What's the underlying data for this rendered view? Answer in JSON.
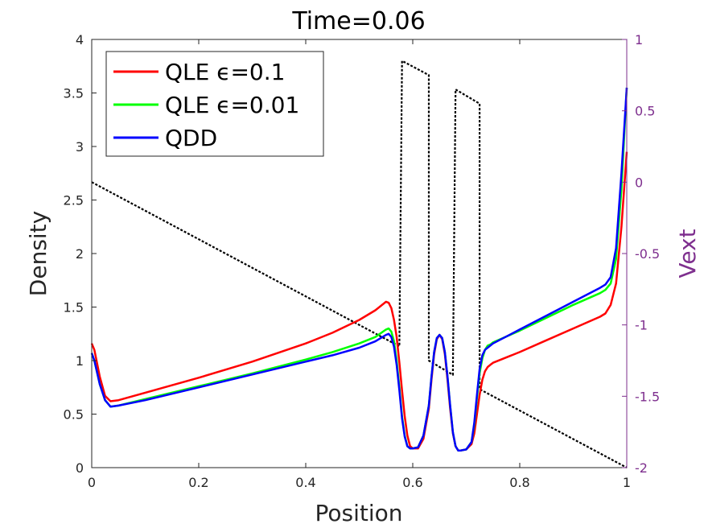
{
  "chart_data": {
    "type": "line",
    "title": "Time=0.06",
    "xlabel": "Position",
    "ylabel": "Density",
    "y2label": "Vext",
    "xlim": [
      0,
      1
    ],
    "ylim": [
      0,
      4
    ],
    "y2lim": [
      -2,
      1
    ],
    "xticks": [
      0,
      0.2,
      0.4,
      0.6,
      0.8,
      1
    ],
    "xtick_labels": [
      "0",
      "0.2",
      "0.4",
      "0.6",
      "0.8",
      "1"
    ],
    "yticks": [
      0,
      0.5,
      1,
      1.5,
      2,
      2.5,
      3,
      3.5,
      4
    ],
    "ytick_labels": [
      "0",
      "0.5",
      "1",
      "1.5",
      "2",
      "2.5",
      "3",
      "3.5",
      "4"
    ],
    "y2ticks": [
      -2,
      -1.5,
      -1,
      -0.5,
      0,
      0.5,
      1
    ],
    "y2tick_labels": [
      "-2",
      "-1.5",
      "-1",
      "-0.5",
      "0",
      "0.5",
      "1"
    ],
    "grid": false,
    "legend_position": "top-left",
    "colors": {
      "qle_01": "#ff0000",
      "qle_001": "#00ff00",
      "qdd": "#0000ff",
      "vext": "#000000",
      "right_axis": "#7e2f8e"
    },
    "series": [
      {
        "name": "QLE ϵ=0.1",
        "axis": "left",
        "color": "#ff0000",
        "x": [
          0,
          0.005,
          0.015,
          0.025,
          0.035,
          0.05,
          0.1,
          0.2,
          0.3,
          0.4,
          0.45,
          0.5,
          0.53,
          0.55,
          0.555,
          0.56,
          0.565,
          0.57,
          0.575,
          0.58,
          0.585,
          0.59,
          0.595,
          0.6,
          0.61,
          0.62,
          0.63,
          0.635,
          0.64,
          0.645,
          0.65,
          0.655,
          0.66,
          0.665,
          0.67,
          0.675,
          0.68,
          0.685,
          0.69,
          0.7,
          0.71,
          0.715,
          0.72,
          0.725,
          0.73,
          0.735,
          0.74,
          0.745,
          0.75,
          0.8,
          0.85,
          0.9,
          0.95,
          0.96,
          0.97,
          0.98,
          0.99,
          1.0
        ],
        "y": [
          1.16,
          1.1,
          0.85,
          0.67,
          0.62,
          0.63,
          0.7,
          0.84,
          0.99,
          1.16,
          1.26,
          1.38,
          1.47,
          1.55,
          1.54,
          1.49,
          1.38,
          1.22,
          0.98,
          0.72,
          0.48,
          0.3,
          0.2,
          0.18,
          0.18,
          0.27,
          0.55,
          0.82,
          1.06,
          1.2,
          1.24,
          1.2,
          1.06,
          0.82,
          0.55,
          0.32,
          0.2,
          0.16,
          0.16,
          0.17,
          0.22,
          0.32,
          0.5,
          0.68,
          0.82,
          0.9,
          0.94,
          0.96,
          0.98,
          1.08,
          1.19,
          1.3,
          1.41,
          1.44,
          1.52,
          1.72,
          2.25,
          2.95
        ]
      },
      {
        "name": "QLE ϵ=0.01",
        "axis": "left",
        "color": "#00ff00",
        "x": [
          0,
          0.005,
          0.015,
          0.025,
          0.035,
          0.05,
          0.1,
          0.2,
          0.3,
          0.4,
          0.45,
          0.5,
          0.53,
          0.55,
          0.555,
          0.56,
          0.565,
          0.57,
          0.575,
          0.58,
          0.585,
          0.59,
          0.595,
          0.6,
          0.61,
          0.62,
          0.63,
          0.635,
          0.64,
          0.645,
          0.65,
          0.655,
          0.66,
          0.665,
          0.67,
          0.675,
          0.68,
          0.685,
          0.69,
          0.7,
          0.71,
          0.715,
          0.72,
          0.725,
          0.73,
          0.735,
          0.74,
          0.745,
          0.75,
          0.8,
          0.85,
          0.9,
          0.95,
          0.96,
          0.97,
          0.98,
          0.99,
          1.0
        ],
        "y": [
          1.07,
          1.0,
          0.78,
          0.63,
          0.57,
          0.58,
          0.64,
          0.76,
          0.88,
          1.01,
          1.08,
          1.16,
          1.22,
          1.29,
          1.3,
          1.27,
          1.18,
          1.0,
          0.75,
          0.48,
          0.3,
          0.2,
          0.18,
          0.18,
          0.19,
          0.3,
          0.58,
          0.85,
          1.08,
          1.21,
          1.24,
          1.21,
          1.08,
          0.85,
          0.58,
          0.33,
          0.2,
          0.16,
          0.16,
          0.17,
          0.24,
          0.4,
          0.65,
          0.88,
          1.02,
          1.1,
          1.14,
          1.15,
          1.17,
          1.28,
          1.4,
          1.52,
          1.63,
          1.66,
          1.72,
          1.95,
          2.6,
          3.55
        ]
      },
      {
        "name": "QDD",
        "axis": "left",
        "color": "#0000ff",
        "x": [
          0,
          0.005,
          0.015,
          0.025,
          0.035,
          0.05,
          0.1,
          0.2,
          0.3,
          0.4,
          0.45,
          0.5,
          0.53,
          0.55,
          0.555,
          0.56,
          0.565,
          0.57,
          0.575,
          0.58,
          0.585,
          0.59,
          0.595,
          0.6,
          0.61,
          0.62,
          0.63,
          0.635,
          0.64,
          0.645,
          0.65,
          0.655,
          0.66,
          0.665,
          0.67,
          0.675,
          0.68,
          0.685,
          0.69,
          0.7,
          0.71,
          0.715,
          0.72,
          0.725,
          0.73,
          0.735,
          0.74,
          0.745,
          0.75,
          0.8,
          0.85,
          0.9,
          0.95,
          0.96,
          0.97,
          0.98,
          0.99,
          1.0
        ],
        "y": [
          1.07,
          1.0,
          0.78,
          0.63,
          0.57,
          0.58,
          0.63,
          0.75,
          0.87,
          0.99,
          1.05,
          1.12,
          1.18,
          1.24,
          1.25,
          1.22,
          1.13,
          0.96,
          0.72,
          0.46,
          0.29,
          0.2,
          0.18,
          0.18,
          0.19,
          0.3,
          0.58,
          0.85,
          1.08,
          1.21,
          1.24,
          1.21,
          1.08,
          0.85,
          0.58,
          0.33,
          0.2,
          0.16,
          0.16,
          0.17,
          0.24,
          0.42,
          0.68,
          0.92,
          1.05,
          1.1,
          1.12,
          1.14,
          1.16,
          1.29,
          1.42,
          1.55,
          1.68,
          1.71,
          1.78,
          2.05,
          2.75,
          3.55
        ]
      },
      {
        "name": "Vext",
        "axis": "right",
        "color": "#000000",
        "dashed": true,
        "x": [
          0,
          0.575,
          0.575,
          0.58,
          0.63,
          0.63,
          0.675,
          0.675,
          0.68,
          0.725,
          0.725,
          1.0
        ],
        "y": [
          0,
          -1.15,
          -1.14,
          0.85,
          0.75,
          -1.25,
          -1.35,
          -1.34,
          0.65,
          0.55,
          -1.45,
          -2
        ]
      }
    ]
  }
}
